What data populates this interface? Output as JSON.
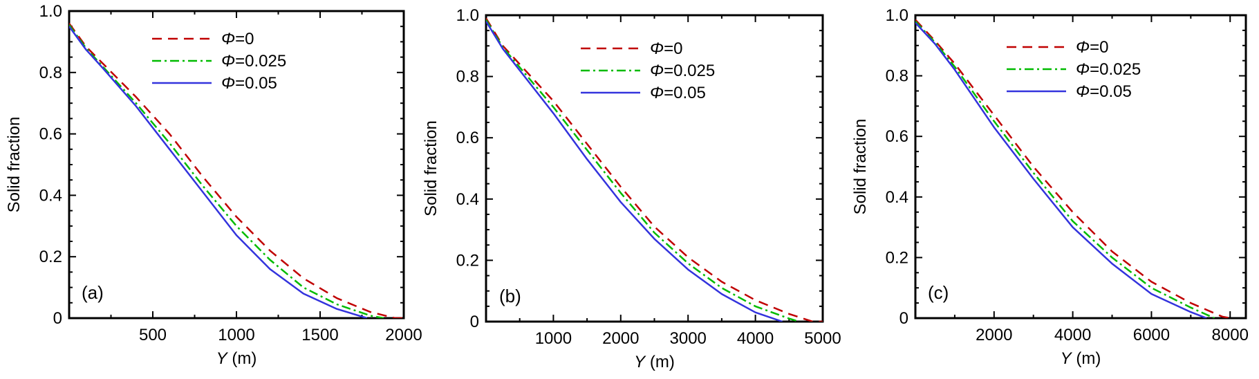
{
  "chart_data": [
    {
      "type": "line",
      "panel_label": "(a)",
      "xlabel": {
        "var": "Y",
        "unit": " (m)"
      },
      "ylabel": "Solid fraction",
      "xlim": [
        0,
        2000
      ],
      "ylim": [
        0,
        1.0
      ],
      "xticks": [
        500,
        1000,
        1500,
        2000
      ],
      "xtick_labels": [
        "500",
        "1000",
        "1500",
        "2000"
      ],
      "yticks": [
        0,
        0.2,
        0.4,
        0.6,
        0.8,
        1.0
      ],
      "ytick_labels": [
        "0",
        "0.2",
        "0.4",
        "0.6",
        "0.8",
        "1.0"
      ],
      "legend_position": "top-right",
      "series": [
        {
          "name": "Φ=0",
          "symbol": "Φ",
          "value_text": "=0",
          "color": "#c00000",
          "dash": "dashed",
          "x": [
            0,
            100,
            200,
            400,
            600,
            800,
            1000,
            1200,
            1400,
            1600,
            1800,
            1950,
            2000
          ],
          "y": [
            0.96,
            0.885,
            0.83,
            0.72,
            0.6,
            0.46,
            0.33,
            0.22,
            0.13,
            0.065,
            0.02,
            0.0,
            0.0
          ]
        },
        {
          "name": "Φ=0.025",
          "symbol": "Φ",
          "value_text": "=0.025",
          "color": "#00bb00",
          "dash": "dashdot",
          "x": [
            0,
            100,
            200,
            400,
            600,
            800,
            1000,
            1200,
            1400,
            1600,
            1800,
            1880
          ],
          "y": [
            0.955,
            0.88,
            0.82,
            0.7,
            0.57,
            0.43,
            0.3,
            0.19,
            0.1,
            0.045,
            0.008,
            0.0
          ]
        },
        {
          "name": "Φ=0.05",
          "symbol": "Φ",
          "value_text": "=0.05",
          "color": "#3333dd",
          "dash": "solid",
          "x": [
            0,
            100,
            200,
            400,
            600,
            800,
            1000,
            1200,
            1400,
            1600,
            1780
          ],
          "y": [
            0.95,
            0.875,
            0.815,
            0.69,
            0.55,
            0.41,
            0.27,
            0.16,
            0.08,
            0.03,
            0.0
          ]
        }
      ]
    },
    {
      "type": "line",
      "panel_label": "(b)",
      "xlabel": {
        "var": "Y",
        "unit": " (m)"
      },
      "ylabel": "Solid fraction",
      "xlim": [
        0,
        5000
      ],
      "ylim": [
        0,
        1.0
      ],
      "xticks": [
        1000,
        2000,
        3000,
        4000,
        5000
      ],
      "xtick_labels": [
        "1000",
        "2000",
        "3000",
        "4000",
        "5000"
      ],
      "yticks": [
        0,
        0.2,
        0.4,
        0.6,
        0.8,
        1.0
      ],
      "ytick_labels": [
        "0",
        "0.2",
        "0.4",
        "0.6",
        "0.8",
        "1.0"
      ],
      "legend_position": "top-right",
      "series": [
        {
          "name": "Φ=0",
          "symbol": "Φ",
          "value_text": "=0",
          "color": "#c00000",
          "dash": "dashed",
          "x": [
            0,
            250,
            500,
            1000,
            1500,
            2000,
            2500,
            3000,
            3500,
            4000,
            4500,
            4850,
            5000
          ],
          "y": [
            0.99,
            0.9,
            0.84,
            0.72,
            0.58,
            0.44,
            0.31,
            0.21,
            0.13,
            0.07,
            0.025,
            0.0,
            0.0
          ]
        },
        {
          "name": "Φ=0.025",
          "symbol": "Φ",
          "value_text": "=0.025",
          "color": "#00bb00",
          "dash": "dashdot",
          "x": [
            0,
            250,
            500,
            1000,
            1500,
            2000,
            2500,
            3000,
            3500,
            4000,
            4500,
            4650
          ],
          "y": [
            0.985,
            0.895,
            0.83,
            0.7,
            0.56,
            0.42,
            0.29,
            0.19,
            0.11,
            0.05,
            0.01,
            0.0
          ]
        },
        {
          "name": "Φ=0.05",
          "symbol": "Φ",
          "value_text": "=0.05",
          "color": "#3333dd",
          "dash": "solid",
          "x": [
            0,
            250,
            500,
            1000,
            1500,
            2000,
            2500,
            3000,
            3500,
            4000,
            4400
          ],
          "y": [
            0.98,
            0.89,
            0.82,
            0.68,
            0.53,
            0.39,
            0.27,
            0.17,
            0.09,
            0.03,
            0.0
          ]
        }
      ]
    },
    {
      "type": "line",
      "panel_label": "(c)",
      "xlabel": {
        "var": "Y",
        "unit": " (m)"
      },
      "ylabel": "Solid fraction",
      "xlim": [
        0,
        8400
      ],
      "ylim": [
        0,
        1.0
      ],
      "xticks": [
        2000,
        4000,
        6000,
        8000
      ],
      "xtick_labels": [
        "2000",
        "4000",
        "6000",
        "8000"
      ],
      "yticks": [
        0,
        0.2,
        0.4,
        0.6,
        0.8,
        1.0
      ],
      "ytick_labels": [
        "0",
        "0.2",
        "0.4",
        "0.6",
        "0.8",
        "1.0"
      ],
      "legend_position": "top-right",
      "series": [
        {
          "name": "Φ=0",
          "symbol": "Φ",
          "value_text": "=0",
          "color": "#c00000",
          "dash": "dashed",
          "x": [
            0,
            500,
            1000,
            2000,
            3000,
            4000,
            5000,
            6000,
            7000,
            7800,
            8000
          ],
          "y": [
            0.985,
            0.915,
            0.84,
            0.67,
            0.5,
            0.35,
            0.22,
            0.12,
            0.05,
            0.005,
            0.0
          ]
        },
        {
          "name": "Φ=0.025",
          "symbol": "Φ",
          "value_text": "=0.025",
          "color": "#00bb00",
          "dash": "dashdot",
          "x": [
            0,
            500,
            1000,
            2000,
            3000,
            4000,
            5000,
            6000,
            7000,
            7600
          ],
          "y": [
            0.98,
            0.91,
            0.83,
            0.65,
            0.48,
            0.32,
            0.2,
            0.1,
            0.035,
            0.0
          ]
        },
        {
          "name": "Φ=0.05",
          "symbol": "Φ",
          "value_text": "=0.05",
          "color": "#3333dd",
          "dash": "solid",
          "x": [
            0,
            500,
            1000,
            2000,
            3000,
            4000,
            5000,
            6000,
            7000,
            7400
          ],
          "y": [
            0.975,
            0.905,
            0.82,
            0.63,
            0.46,
            0.3,
            0.18,
            0.08,
            0.02,
            0.0
          ]
        }
      ]
    }
  ]
}
